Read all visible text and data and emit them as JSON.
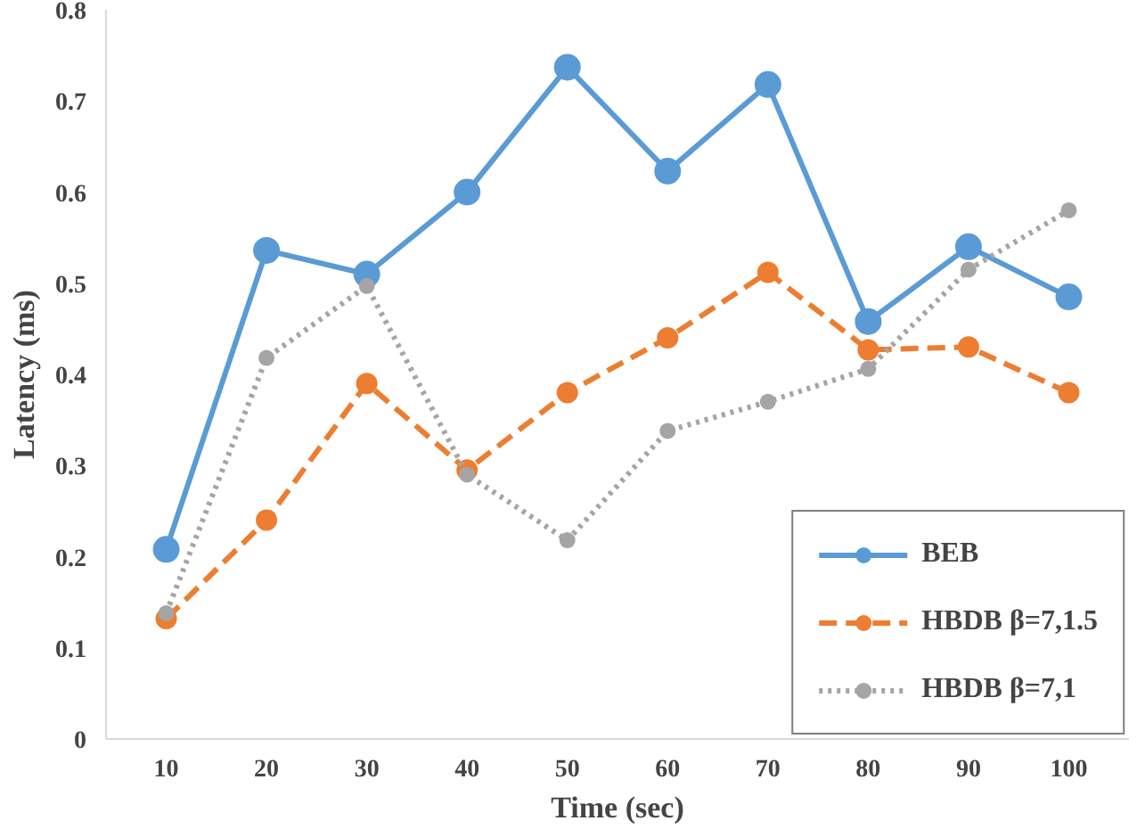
{
  "chart_data": {
    "type": "line",
    "xlabel": "Time (sec)",
    "ylabel": "Latency (ms)",
    "categories": [
      "10",
      "20",
      "30",
      "40",
      "50",
      "60",
      "70",
      "80",
      "90",
      "100"
    ],
    "ylim": [
      0,
      0.8
    ],
    "yticks": [
      0,
      0.1,
      0.2,
      0.3,
      0.4,
      0.5,
      0.6,
      0.7,
      0.8
    ],
    "grid": false,
    "legend": "bottom right",
    "marker": "circle",
    "series": [
      {
        "name": "BEB",
        "color": "#5b9bd5",
        "line_style": "solid",
        "values": [
          0.208,
          0.536,
          0.51,
          0.6,
          0.737,
          0.623,
          0.718,
          0.458,
          0.54,
          0.485
        ]
      },
      {
        "name": "HBDB β=7,1.5",
        "color": "#ed7d31",
        "line_style": "dashed",
        "values": [
          0.132,
          0.24,
          0.39,
          0.295,
          0.38,
          0.44,
          0.512,
          0.427,
          0.43,
          0.38
        ]
      },
      {
        "name": "HBDB β=7,1",
        "color": "#a5a5a5",
        "line_style": "dotted",
        "values": [
          0.138,
          0.418,
          0.497,
          0.29,
          0.218,
          0.338,
          0.37,
          0.406,
          0.515,
          0.58
        ]
      }
    ]
  }
}
